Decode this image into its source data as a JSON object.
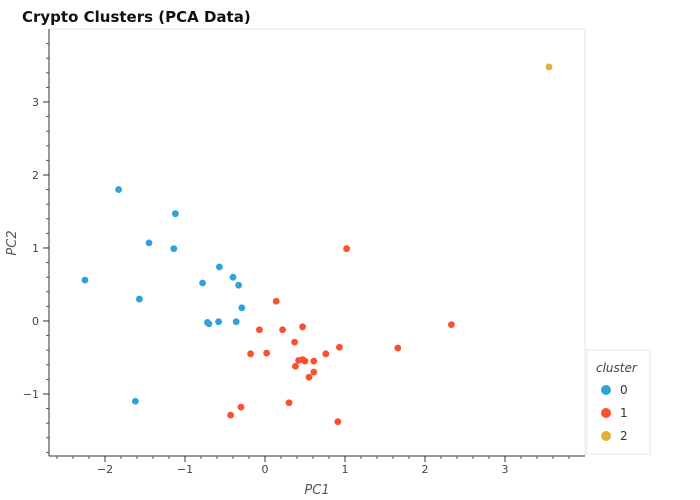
{
  "chart_data": {
    "type": "scatter",
    "title": "Crypto Clusters (PCA Data)",
    "xlabel": "PC1",
    "ylabel": "PC2",
    "xlim": [
      -2.7,
      4.0
    ],
    "ylim": [
      -1.85,
      4.0
    ],
    "x_ticks": [
      -2,
      -1,
      0,
      1,
      2,
      3
    ],
    "y_ticks": [
      -1,
      0,
      1,
      2,
      3
    ],
    "grid": false,
    "legend": {
      "title": "cluster",
      "position": "bottom-right"
    },
    "series": [
      {
        "name": "0",
        "color": "#30a2da",
        "points": [
          [
            -1.83,
            1.8
          ],
          [
            -1.12,
            1.47
          ],
          [
            -1.45,
            1.07
          ],
          [
            -1.14,
            0.99
          ],
          [
            -2.25,
            0.56
          ],
          [
            -1.57,
            0.3
          ],
          [
            -1.62,
            -1.1
          ],
          [
            -0.57,
            0.74
          ],
          [
            -0.4,
            0.6
          ],
          [
            -0.33,
            0.49
          ],
          [
            -0.78,
            0.52
          ],
          [
            -0.29,
            0.18
          ],
          [
            -0.72,
            -0.02
          ],
          [
            -0.7,
            -0.04
          ],
          [
            -0.58,
            -0.01
          ],
          [
            -0.36,
            -0.01
          ]
        ]
      },
      {
        "name": "1",
        "color": "#fc4f30",
        "points": [
          [
            1.02,
            0.99
          ],
          [
            0.14,
            0.27
          ],
          [
            2.33,
            -0.05
          ],
          [
            1.66,
            -0.37
          ],
          [
            -0.07,
            -0.12
          ],
          [
            0.22,
            -0.12
          ],
          [
            0.47,
            -0.08
          ],
          [
            0.37,
            -0.29
          ],
          [
            0.93,
            -0.36
          ],
          [
            0.76,
            -0.45
          ],
          [
            -0.18,
            -0.45
          ],
          [
            0.02,
            -0.44
          ],
          [
            0.42,
            -0.54
          ],
          [
            0.47,
            -0.53
          ],
          [
            0.5,
            -0.55
          ],
          [
            0.61,
            -0.55
          ],
          [
            0.38,
            -0.62
          ],
          [
            0.61,
            -0.7
          ],
          [
            0.55,
            -0.77
          ],
          [
            -0.3,
            -1.18
          ],
          [
            0.3,
            -1.12
          ],
          [
            -0.43,
            -1.29
          ],
          [
            0.91,
            -1.38
          ]
        ]
      },
      {
        "name": "2",
        "color": "#e5ae38",
        "points": [
          [
            3.55,
            3.48
          ]
        ]
      }
    ]
  }
}
